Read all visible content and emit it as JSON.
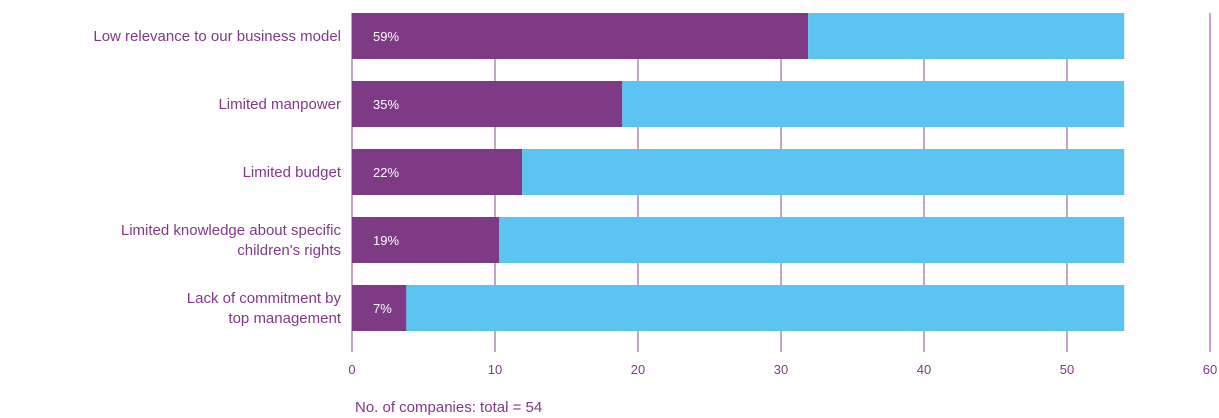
{
  "chart_data": {
    "type": "bar",
    "orientation": "horizontal",
    "stacked": true,
    "categories": [
      [
        "Low relevance to our business model"
      ],
      [
        "Limited manpower"
      ],
      [
        "Limited budget"
      ],
      [
        "Limited knowledge about specific",
        "children's rights"
      ],
      [
        "Lack of commitment by",
        "top management"
      ]
    ],
    "series": [
      {
        "values": [
          31.9,
          18.9,
          11.9,
          10.3,
          3.8
        ],
        "color": "#7f3a86"
      },
      {
        "values": [
          22.1,
          35.1,
          42.1,
          43.7,
          50.2
        ],
        "color": "#5bc4f1"
      }
    ],
    "data_labels": [
      "59%",
      "35%",
      "22%",
      "19%",
      "7%"
    ],
    "xlim": [
      0,
      60
    ],
    "xticks": [
      0,
      10,
      20,
      30,
      40,
      50,
      60
    ],
    "grid": "vertical",
    "footnote": "No. of companies: total = 54"
  }
}
